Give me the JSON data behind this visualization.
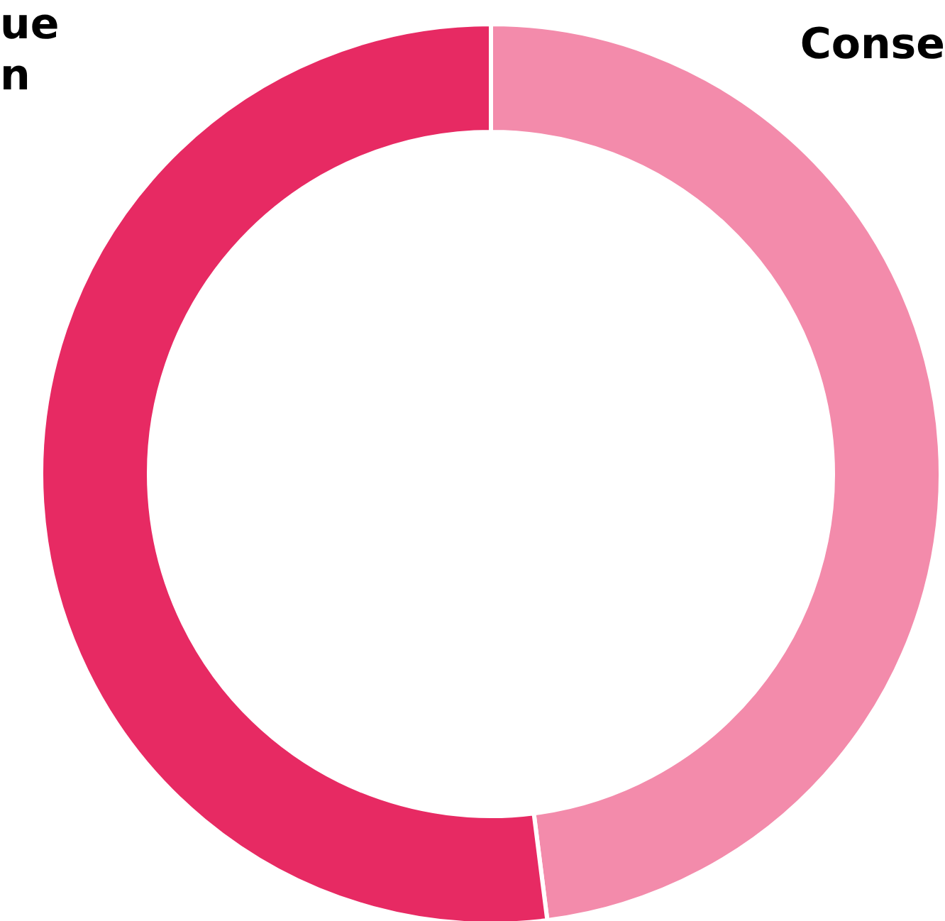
{
  "chart_data": {
    "type": "donut",
    "categories": [
      "Conse",
      "ue\nn"
    ],
    "values": [
      48,
      52
    ],
    "colors": [
      "#f38bab",
      "#e72a63"
    ]
  }
}
